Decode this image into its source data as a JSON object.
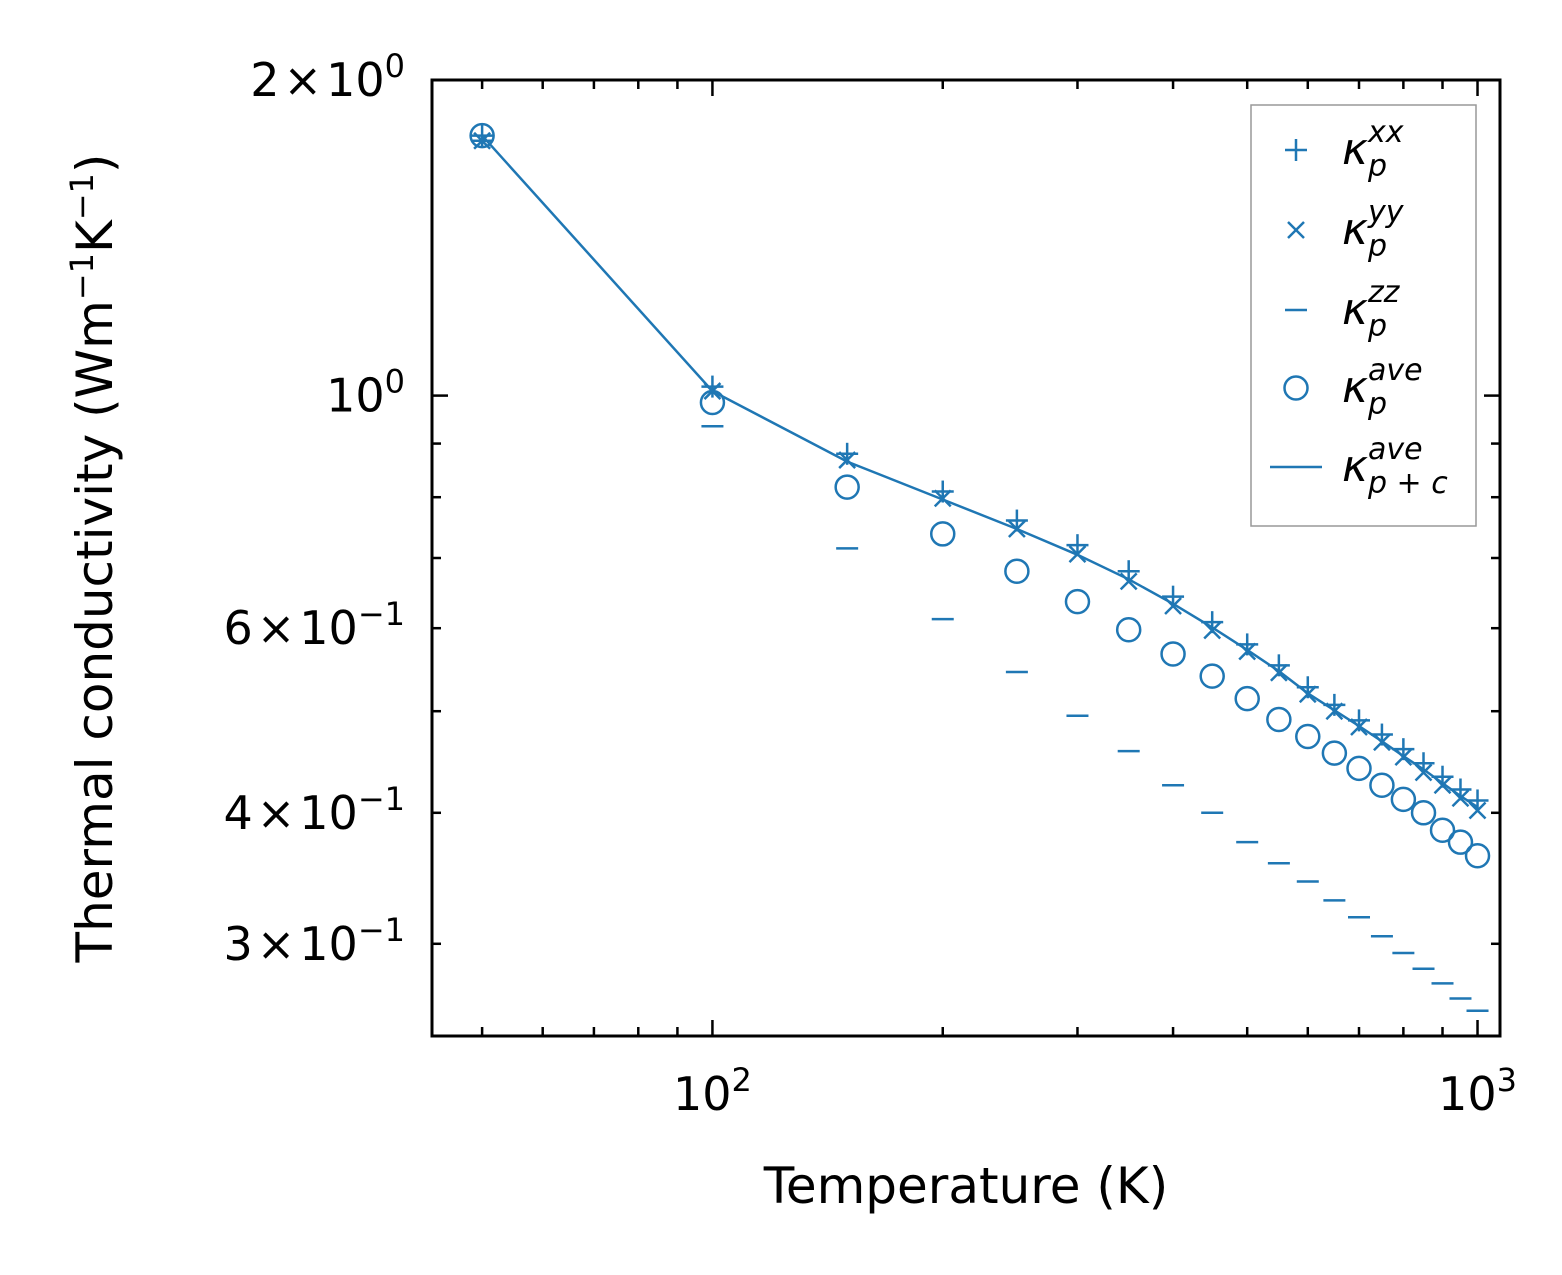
{
  "chart_data": {
    "type": "scatter",
    "xscale": "log",
    "yscale": "log",
    "xlabel": "Temperature (K)",
    "ylabel": "Thermal conductivity (Wm",
    "ylabel_unit_parts": [
      "−1",
      "K",
      "−1",
      ")"
    ],
    "xlim": [
      43,
      1070
    ],
    "ylim": [
      0.245,
      2.0
    ],
    "x_ticks": [
      {
        "value": 100,
        "base": "10",
        "exp": "2"
      },
      {
        "value": 1000,
        "base": "10",
        "exp": "3"
      }
    ],
    "y_ticks": [
      {
        "value": 2.0,
        "mant": "2",
        "exp": "0",
        "times": true
      },
      {
        "value": 1.0,
        "mant": "",
        "exp": "0",
        "times": false
      },
      {
        "value": 0.6,
        "mant": "6",
        "exp": "−1",
        "times": true
      },
      {
        "value": 0.4,
        "mant": "4",
        "exp": "−1",
        "times": true
      },
      {
        "value": 0.3,
        "mant": "3",
        "exp": "−1",
        "times": true
      }
    ],
    "color": "#1f77b4",
    "x": [
      50,
      100,
      150,
      200,
      250,
      300,
      350,
      400,
      450,
      500,
      550,
      600,
      650,
      700,
      750,
      800,
      850,
      900,
      950,
      1000
    ],
    "series": [
      {
        "name": "kappa_xx",
        "marker": "plus",
        "sup": "xx",
        "sub": "p",
        "values": [
          1.77,
          1.02,
          0.88,
          0.81,
          0.76,
          0.72,
          0.68,
          0.643,
          0.608,
          0.579,
          0.553,
          0.527,
          0.507,
          0.49,
          0.475,
          0.46,
          0.446,
          0.433,
          0.421,
          0.411
        ]
      },
      {
        "name": "kappa_yy",
        "marker": "x",
        "sup": "yy",
        "sub": "p",
        "values": [
          1.75,
          1.01,
          0.868,
          0.798,
          0.746,
          0.706,
          0.665,
          0.63,
          0.597,
          0.57,
          0.544,
          0.519,
          0.5,
          0.483,
          0.467,
          0.452,
          0.437,
          0.425,
          0.413,
          0.402
        ]
      },
      {
        "name": "kappa_zz",
        "marker": "hline",
        "sup": "zz",
        "sub": "p",
        "values": [
          1.75,
          0.935,
          0.715,
          0.612,
          0.545,
          0.495,
          0.458,
          0.425,
          0.4,
          0.375,
          0.358,
          0.344,
          0.33,
          0.318,
          0.305,
          0.294,
          0.284,
          0.275,
          0.266,
          0.259
        ]
      },
      {
        "name": "kappa_ave",
        "marker": "circle",
        "sup": "ave",
        "sub": "p",
        "values": [
          1.77,
          0.985,
          0.818,
          0.738,
          0.68,
          0.636,
          0.598,
          0.567,
          0.54,
          0.514,
          0.491,
          0.473,
          0.456,
          0.441,
          0.425,
          0.412,
          0.4,
          0.385,
          0.375,
          0.364
        ]
      },
      {
        "name": "kappa_ave_pc",
        "marker": "line",
        "sup": "ave",
        "sub": "p + c",
        "values": [
          1.77,
          1.01,
          0.865,
          0.796,
          0.746,
          0.705,
          0.668,
          0.633,
          0.601,
          0.572,
          0.546,
          0.52,
          0.501,
          0.484,
          0.468,
          0.453,
          0.44,
          0.427,
          0.415,
          0.405
        ]
      }
    ],
    "legend": {
      "placement": "top-right",
      "entries": [
        {
          "symbol": "κ",
          "sup": "xx",
          "sub": "p"
        },
        {
          "symbol": "κ",
          "sup": "yy",
          "sub": "p"
        },
        {
          "symbol": "κ",
          "sup": "zz",
          "sub": "p"
        },
        {
          "symbol": "κ",
          "sup": "ave",
          "sub": "p"
        },
        {
          "symbol": "κ",
          "sup": "ave",
          "sub": "p + c"
        }
      ]
    }
  }
}
